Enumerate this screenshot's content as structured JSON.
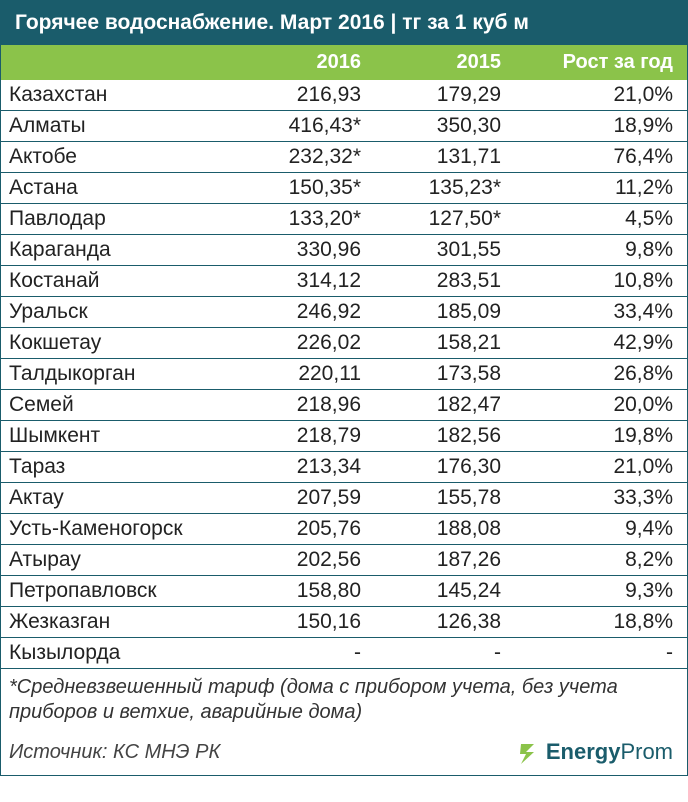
{
  "title": "Горячее водоснабжение. Март 2016 | тг за 1 куб м",
  "columns": {
    "c2016": "2016",
    "c2015": "2015",
    "growth": "Рост за год"
  },
  "rows": [
    {
      "name": "Казахстан",
      "v2016": "216,93",
      "v2015": "179,29",
      "growth": "21,0%"
    },
    {
      "name": "Алматы",
      "v2016": "416,43*",
      "v2015": "350,30",
      "growth": "18,9%"
    },
    {
      "name": "Актобе",
      "v2016": "232,32*",
      "v2015": "131,71",
      "growth": "76,4%"
    },
    {
      "name": "Астана",
      "v2016": "150,35*",
      "v2015": "135,23*",
      "growth": "11,2%"
    },
    {
      "name": "Павлодар",
      "v2016": "133,20*",
      "v2015": "127,50*",
      "growth": "4,5%"
    },
    {
      "name": "Караганда",
      "v2016": "330,96",
      "v2015": "301,55",
      "growth": "9,8%"
    },
    {
      "name": "Костанай",
      "v2016": "314,12",
      "v2015": "283,51",
      "growth": "10,8%"
    },
    {
      "name": "Уральск",
      "v2016": "246,92",
      "v2015": "185,09",
      "growth": "33,4%"
    },
    {
      "name": "Кокшетау",
      "v2016": "226,02",
      "v2015": "158,21",
      "growth": "42,9%"
    },
    {
      "name": "Талдыкорган",
      "v2016": "220,11",
      "v2015": "173,58",
      "growth": "26,8%"
    },
    {
      "name": "Семей",
      "v2016": "218,96",
      "v2015": "182,47",
      "growth": "20,0%"
    },
    {
      "name": "Шымкент",
      "v2016": "218,79",
      "v2015": "182,56",
      "growth": "19,8%"
    },
    {
      "name": "Тараз",
      "v2016": "213,34",
      "v2015": "176,30",
      "growth": "21,0%"
    },
    {
      "name": "Актау",
      "v2016": "207,59",
      "v2015": "155,78",
      "growth": "33,3%"
    },
    {
      "name": "Усть-Каменогорск",
      "v2016": "205,76",
      "v2015": "188,08",
      "growth": "9,4%"
    },
    {
      "name": "Атырау",
      "v2016": "202,56",
      "v2015": "187,26",
      "growth": "8,2%"
    },
    {
      "name": "Петропавловск",
      "v2016": "158,80",
      "v2015": "145,24",
      "growth": "9,3%"
    },
    {
      "name": "Жезказган",
      "v2016": "150,16",
      "v2015": "126,38",
      "growth": "18,8%"
    },
    {
      "name": "Кызылорда",
      "v2016": "-",
      "v2015": "-",
      "growth": "-"
    }
  ],
  "footnote": "*Средневзвешенный тариф (дома с прибором учета, без учета приборов и ветхие, аварийные дома)",
  "source": "Источник: КС МНЭ РК",
  "logo": {
    "bold": "Energy",
    "light": "Prom"
  },
  "colors": {
    "header_bg": "#1a5c6b",
    "subheader_bg": "#8bc34a",
    "row_border": "#1a5c6b",
    "text": "#222222",
    "logo": "#1a5c6b"
  }
}
